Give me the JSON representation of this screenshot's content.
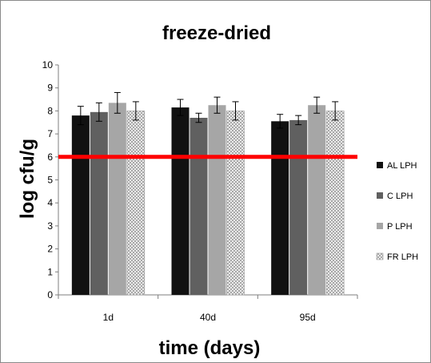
{
  "chart_data": {
    "type": "bar",
    "title": "freeze-dried",
    "xlabel": "time (days)",
    "ylabel": "log cfu/g",
    "categories": [
      "1d",
      "40d",
      "95d"
    ],
    "ylim": [
      0,
      10
    ],
    "yticks": [
      0,
      1,
      2,
      3,
      4,
      5,
      6,
      7,
      8,
      9,
      10
    ],
    "grid": false,
    "legend_position": "right",
    "series": [
      {
        "name": "AL LPH",
        "color": "#111111",
        "pattern": "solid",
        "values": [
          7.8,
          8.15,
          7.55
        ],
        "errors": [
          0.4,
          0.35,
          0.3
        ]
      },
      {
        "name": "C LPH",
        "color": "#606060",
        "pattern": "solid",
        "values": [
          7.95,
          7.7,
          7.6
        ],
        "errors": [
          0.4,
          0.2,
          0.2
        ]
      },
      {
        "name": "P LPH",
        "color": "#a6a6a6",
        "pattern": "solid",
        "values": [
          8.35,
          8.25,
          8.25
        ],
        "errors": [
          0.45,
          0.35,
          0.35
        ]
      },
      {
        "name": "FR LPH",
        "color": "#bcbcbc",
        "pattern": "crosshatch",
        "values": [
          8.0,
          8.0,
          8.0
        ],
        "errors": [
          0.4,
          0.4,
          0.4
        ]
      }
    ],
    "reference_line": {
      "y": 6,
      "color": "#ff0000"
    }
  }
}
